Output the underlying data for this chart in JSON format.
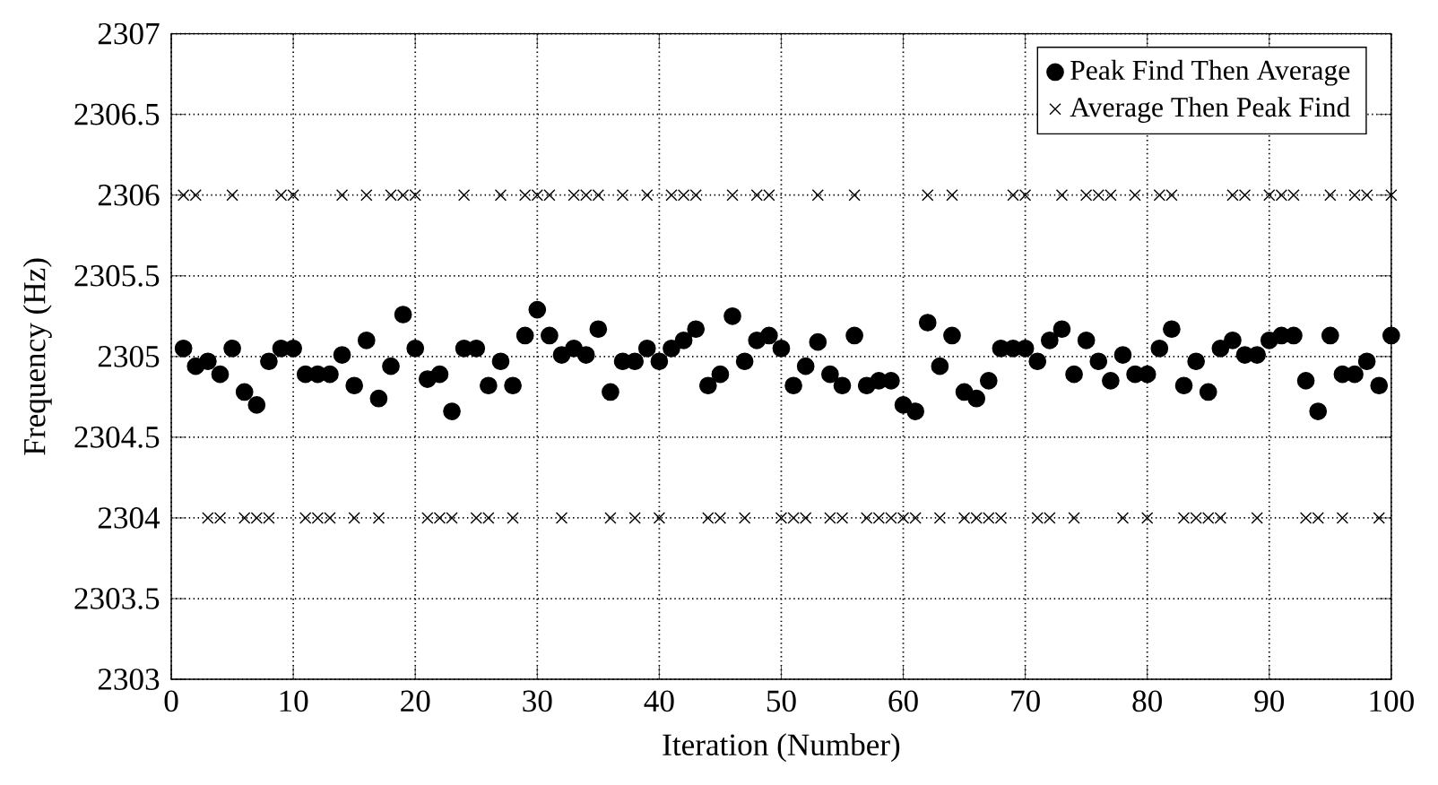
{
  "chart_data": {
    "type": "scatter",
    "xlabel": "Iteration (Number)",
    "ylabel": "Frequency (Hz)",
    "xlim": [
      0,
      100
    ],
    "ylim": [
      2303,
      2307
    ],
    "xticks": [
      0,
      10,
      20,
      30,
      40,
      50,
      60,
      70,
      80,
      90,
      100
    ],
    "yticks": [
      2303,
      2303.5,
      2304,
      2304.5,
      2305,
      2305.5,
      2306,
      2306.5,
      2307
    ],
    "grid": true,
    "legend": "top right",
    "series": [
      {
        "name": "Peak Find Then Average",
        "color": "#000000",
        "marker": "circle",
        "x": [
          1,
          2,
          3,
          4,
          5,
          6,
          7,
          8,
          9,
          10,
          11,
          12,
          13,
          14,
          15,
          16,
          17,
          18,
          19,
          20,
          21,
          22,
          23,
          24,
          25,
          26,
          27,
          28,
          29,
          30,
          31,
          32,
          33,
          34,
          35,
          36,
          37,
          38,
          39,
          40,
          41,
          42,
          43,
          44,
          45,
          46,
          47,
          48,
          49,
          50,
          51,
          52,
          53,
          54,
          55,
          56,
          57,
          58,
          59,
          60,
          61,
          62,
          63,
          64,
          65,
          66,
          67,
          68,
          69,
          70,
          71,
          72,
          73,
          74,
          75,
          76,
          77,
          78,
          79,
          80,
          81,
          82,
          83,
          84,
          85,
          86,
          87,
          88,
          89,
          90,
          91,
          92,
          93,
          94,
          95,
          96,
          97,
          98,
          99,
          100
        ],
        "values": [
          2305.05,
          2304.94,
          2304.97,
          2304.89,
          2305.05,
          2304.78,
          2304.7,
          2304.97,
          2305.05,
          2305.05,
          2304.89,
          2304.89,
          2304.89,
          2305.01,
          2304.82,
          2305.1,
          2304.74,
          2304.94,
          2305.26,
          2305.05,
          2304.86,
          2304.89,
          2304.66,
          2305.05,
          2305.05,
          2304.82,
          2304.97,
          2304.82,
          2305.13,
          2305.29,
          2305.13,
          2305.01,
          2305.05,
          2305.01,
          2305.17,
          2304.78,
          2304.97,
          2304.97,
          2305.05,
          2304.97,
          2305.05,
          2305.1,
          2305.17,
          2304.82,
          2304.89,
          2305.25,
          2304.97,
          2305.1,
          2305.13,
          2305.05,
          2304.82,
          2304.94,
          2305.09,
          2304.89,
          2304.82,
          2305.13,
          2304.82,
          2304.85,
          2304.85,
          2304.7,
          2304.66,
          2305.21,
          2304.94,
          2305.13,
          2304.78,
          2304.74,
          2304.85,
          2305.05,
          2305.05,
          2305.05,
          2304.97,
          2305.1,
          2305.17,
          2304.89,
          2305.1,
          2304.97,
          2304.85,
          2305.01,
          2304.89,
          2304.89,
          2305.05,
          2305.17,
          2304.82,
          2304.97,
          2304.78,
          2305.05,
          2305.1,
          2305.01,
          2305.01,
          2305.1,
          2305.13,
          2305.13,
          2304.85,
          2304.66,
          2305.13,
          2304.89,
          2304.89,
          2304.97,
          2304.82,
          2305.13
        ]
      },
      {
        "name": "Average Then Peak Find",
        "color": "#000000",
        "marker": "cross",
        "x": [
          1,
          2,
          3,
          4,
          5,
          6,
          7,
          8,
          9,
          10,
          11,
          12,
          13,
          14,
          15,
          16,
          17,
          18,
          19,
          20,
          21,
          22,
          23,
          24,
          25,
          26,
          27,
          28,
          29,
          30,
          31,
          32,
          33,
          34,
          35,
          36,
          37,
          38,
          39,
          40,
          41,
          42,
          43,
          44,
          45,
          46,
          47,
          48,
          49,
          50,
          51,
          52,
          53,
          54,
          55,
          56,
          57,
          58,
          59,
          60,
          61,
          62,
          63,
          64,
          65,
          66,
          67,
          68,
          69,
          70,
          71,
          72,
          73,
          74,
          75,
          76,
          77,
          78,
          79,
          80,
          81,
          82,
          83,
          84,
          85,
          86,
          87,
          88,
          89,
          90,
          91,
          92,
          93,
          94,
          95,
          96,
          97,
          98,
          99,
          100
        ],
        "values": [
          2306,
          2306,
          2304,
          2304,
          2306,
          2304,
          2304,
          2304,
          2306,
          2306,
          2304,
          2304,
          2304,
          2306,
          2304,
          2306,
          2304,
          2306,
          2306,
          2306,
          2304,
          2304,
          2304,
          2306,
          2304,
          2304,
          2306,
          2304,
          2306,
          2306,
          2306,
          2304,
          2306,
          2306,
          2306,
          2304,
          2306,
          2304,
          2306,
          2304,
          2306,
          2306,
          2306,
          2304,
          2304,
          2306,
          2304,
          2306,
          2306,
          2304,
          2304,
          2304,
          2306,
          2304,
          2304,
          2306,
          2304,
          2304,
          2304,
          2304,
          2304,
          2306,
          2304,
          2306,
          2304,
          2304,
          2304,
          2304,
          2306,
          2306,
          2304,
          2304,
          2306,
          2304,
          2306,
          2306,
          2306,
          2304,
          2306,
          2304,
          2306,
          2306,
          2304,
          2304,
          2304,
          2304,
          2306,
          2306,
          2304,
          2306,
          2306,
          2306,
          2304,
          2304,
          2306,
          2304,
          2306,
          2306,
          2304,
          2306
        ]
      }
    ]
  }
}
